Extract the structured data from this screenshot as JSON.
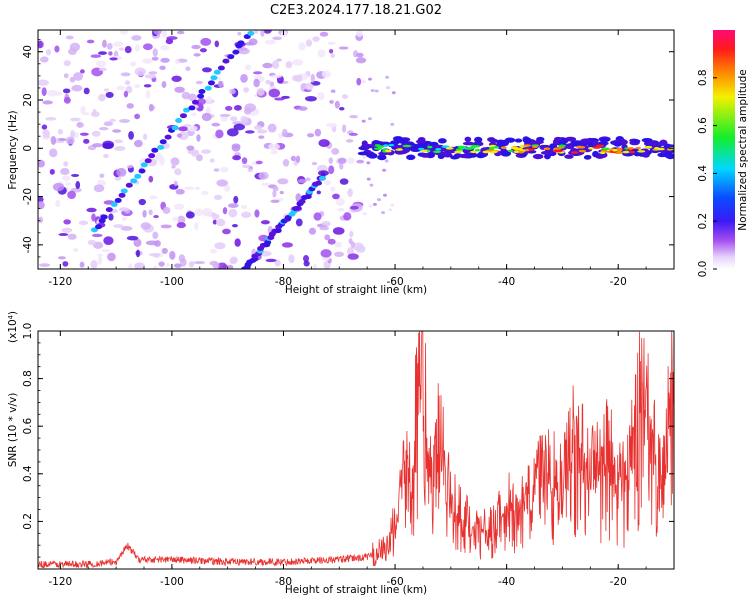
{
  "title": "C2E3.2024.177.18.21.G02",
  "chart_data": [
    {
      "type": "heatmap",
      "xlabel": "Height of straight line (km)",
      "ylabel": "Frequency (Hz)",
      "xlim": [
        -124,
        -10
      ],
      "ylim": [
        -50,
        49
      ],
      "x_ticks": [
        -120,
        -100,
        -80,
        -60,
        -40,
        -20
      ],
      "y_ticks": [
        -40,
        -20,
        0,
        20,
        40
      ],
      "colorbar": {
        "label": "Normalized spectral amplitude",
        "range": [
          0.0,
          1.0
        ],
        "ticks": [
          "0.0",
          "0.2",
          "0.4",
          "0.6",
          "0.8"
        ]
      },
      "features": [
        {
          "shape": "diagonal streak",
          "x_range": [
            -114,
            -86
          ],
          "y_range": [
            -34,
            48
          ]
        },
        {
          "shape": "diagonal streak",
          "x_range": [
            -87,
            -73
          ],
          "y_range": [
            -50,
            -12
          ]
        },
        {
          "shape": "horizontal band",
          "x_range": [
            -66,
            -10
          ],
          "y_approx": 0
        }
      ]
    },
    {
      "type": "line",
      "xlabel": "Height of straight line (km)",
      "ylabel": "SNR (10 * v/v)",
      "y_scale_label": "(x10⁴)",
      "xlim": [
        -124,
        -10
      ],
      "ylim": [
        0,
        1.0
      ],
      "x_ticks": [
        -120,
        -100,
        -80,
        -60,
        -40,
        -20
      ],
      "y_ticks": [
        "0.2",
        "0.4",
        "0.6",
        "0.8",
        "1.0"
      ],
      "color": "#e8312f",
      "series": [
        {
          "x": [
            -124,
            -115,
            -110,
            -108,
            -106,
            -100,
            -90,
            -80,
            -70,
            -65,
            -62,
            -60,
            -58,
            -57,
            -56,
            -55,
            -54,
            -52,
            -50,
            -48,
            -45,
            -42,
            -40,
            -38,
            -35,
            -32,
            -30,
            -28,
            -25,
            -22,
            -20,
            -18,
            -16,
            -14,
            -12,
            -10
          ],
          "y": [
            0.02,
            0.02,
            0.03,
            0.1,
            0.04,
            0.04,
            0.03,
            0.03,
            0.04,
            0.05,
            0.08,
            0.2,
            0.5,
            0.35,
            0.85,
            1.0,
            0.4,
            0.65,
            0.3,
            0.25,
            0.15,
            0.2,
            0.3,
            0.25,
            0.4,
            0.45,
            0.4,
            0.6,
            0.45,
            0.55,
            0.4,
            0.45,
            0.85,
            0.6,
            0.4,
            0.9
          ]
        }
      ]
    }
  ]
}
